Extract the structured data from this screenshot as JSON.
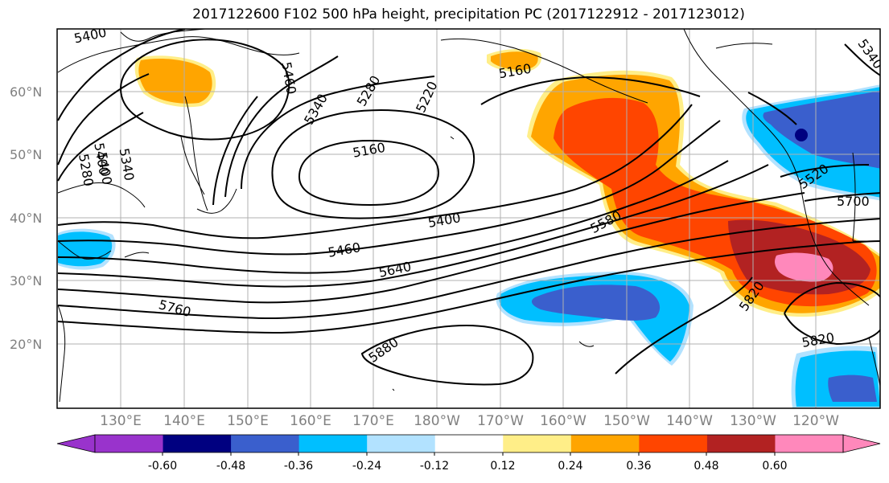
{
  "title": "2017122600 F102 500 hPa height, precipitation PC (2017122912 - 2017123012)",
  "lat_labels": [
    "60°N",
    "50°N",
    "40°N",
    "30°N",
    "20°N"
  ],
  "lon_labels": [
    "130°E",
    "140°E",
    "150°E",
    "160°E",
    "170°E",
    "180°W",
    "170°W",
    "160°W",
    "150°W",
    "140°W",
    "130°W",
    "120°W"
  ],
  "contour_labels": [
    "5400",
    "5460",
    "5340",
    "5280",
    "5220",
    "5160",
    "5340",
    "5280",
    "5400",
    "5160",
    "5400",
    "5460",
    "5640",
    "5580",
    "5760",
    "5880",
    "5820",
    "5820",
    "5520",
    "5700",
    "5340",
    "5400",
    "5340",
    "5280"
  ],
  "colorbar": {
    "ticks": [
      "-0.60",
      "-0.48",
      "-0.36",
      "-0.24",
      "-0.12",
      "0.12",
      "0.24",
      "0.36",
      "0.48",
      "0.60"
    ],
    "colors": [
      "#9933cc",
      "#000080",
      "#3a5fcd",
      "#00bfff",
      "#b2e2ff",
      "#ffffff",
      "#ffee88",
      "#ffa500",
      "#ff4500",
      "#b22222",
      "#ff88bb"
    ]
  },
  "colors": {
    "grid": "#b0b0b0",
    "coast": "#000000",
    "contour": "#000000"
  }
}
